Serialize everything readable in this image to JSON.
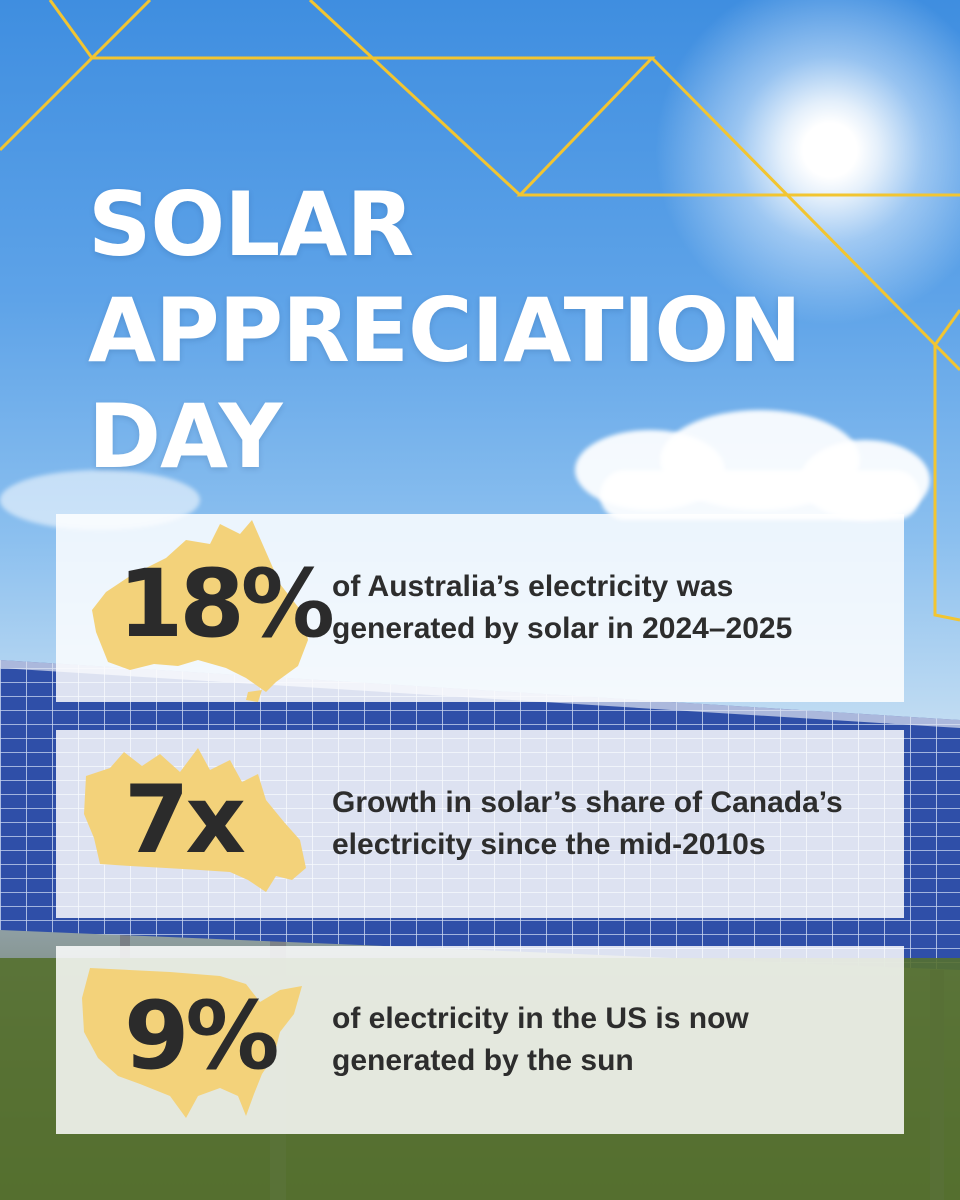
{
  "title": {
    "line1": "SOLAR",
    "line2": "APPRECIATION",
    "line3": "DAY"
  },
  "stats": [
    {
      "value": "18%",
      "line1": "of Australia’s electricity was",
      "line2": "generated by solar in 2024–2025",
      "map": "australia-map-icon"
    },
    {
      "value": "7x",
      "line1": "Growth in solar’s share of Canada’s",
      "line2": "electricity since the mid-2010s",
      "map": "canada-map-icon"
    },
    {
      "value": "9%",
      "line1": "of electricity in the US is now",
      "line2": "generated by the sun",
      "map": "usa-map-icon"
    }
  ],
  "colors": {
    "accent_gold": "#f2c531",
    "map_fill": "#f3d27a",
    "card_bg": "#ffffff",
    "text_dark": "#2b2b2b",
    "sky": "#4a95e2",
    "panel_blue": "#2f4fa8"
  }
}
